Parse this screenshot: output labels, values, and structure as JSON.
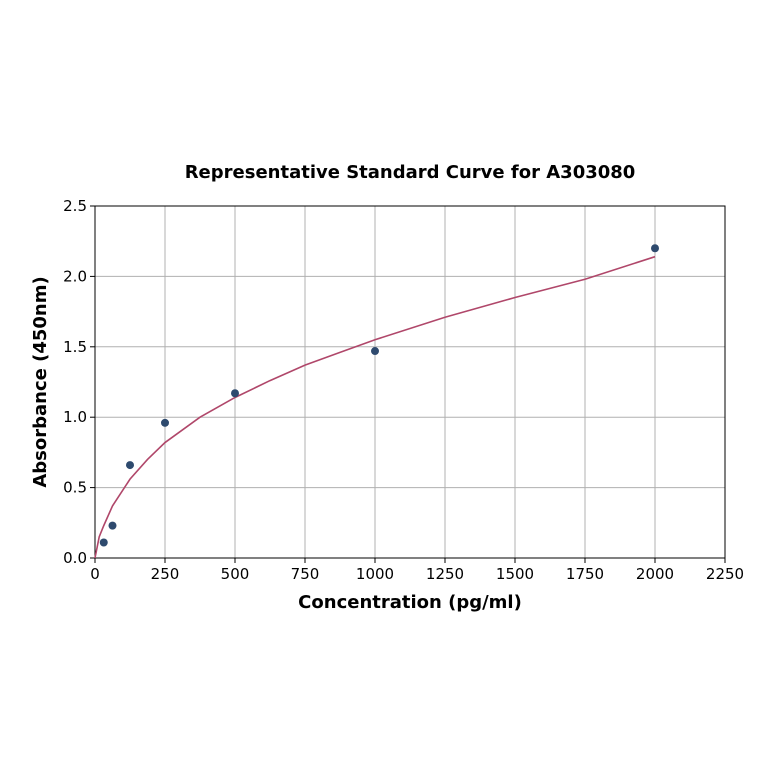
{
  "chart_data": {
    "type": "scatter",
    "title": "Representative Standard Curve for A303080",
    "xlabel": "Concentration (pg/ml)",
    "ylabel": "Absorbance (450nm)",
    "xlim": [
      0,
      2250
    ],
    "ylim": [
      0,
      2.5
    ],
    "xticks": [
      0,
      250,
      500,
      750,
      1000,
      1250,
      1500,
      1750,
      2000,
      2250
    ],
    "xtick_labels": [
      "0",
      "250",
      "500",
      "750",
      "1000",
      "1250",
      "1500",
      "1750",
      "2000",
      "2250"
    ],
    "yticks": [
      0,
      0.5,
      1.0,
      1.5,
      2.0,
      2.5
    ],
    "ytick_labels": [
      "0.0",
      "0.5",
      "1.0",
      "1.5",
      "2.0",
      "2.5"
    ],
    "grid": true,
    "series": [
      {
        "kind": "points",
        "color": "#2e4a6e",
        "x": [
          31.25,
          62.5,
          125,
          250,
          500,
          1000,
          2000
        ],
        "y": [
          0.11,
          0.23,
          0.66,
          0.96,
          1.17,
          1.47,
          2.2
        ]
      },
      {
        "kind": "fit-curve",
        "color": "#b0476a",
        "x": [
          0,
          15,
          31.25,
          62.5,
          125,
          187.5,
          250,
          375,
          500,
          625,
          750,
          875,
          1000,
          1250,
          1500,
          1750,
          2000
        ],
        "y": [
          0,
          0.15,
          0.23,
          0.37,
          0.56,
          0.7,
          0.82,
          1.0,
          1.14,
          1.26,
          1.37,
          1.46,
          1.55,
          1.71,
          1.85,
          1.98,
          2.14
        ]
      }
    ]
  }
}
